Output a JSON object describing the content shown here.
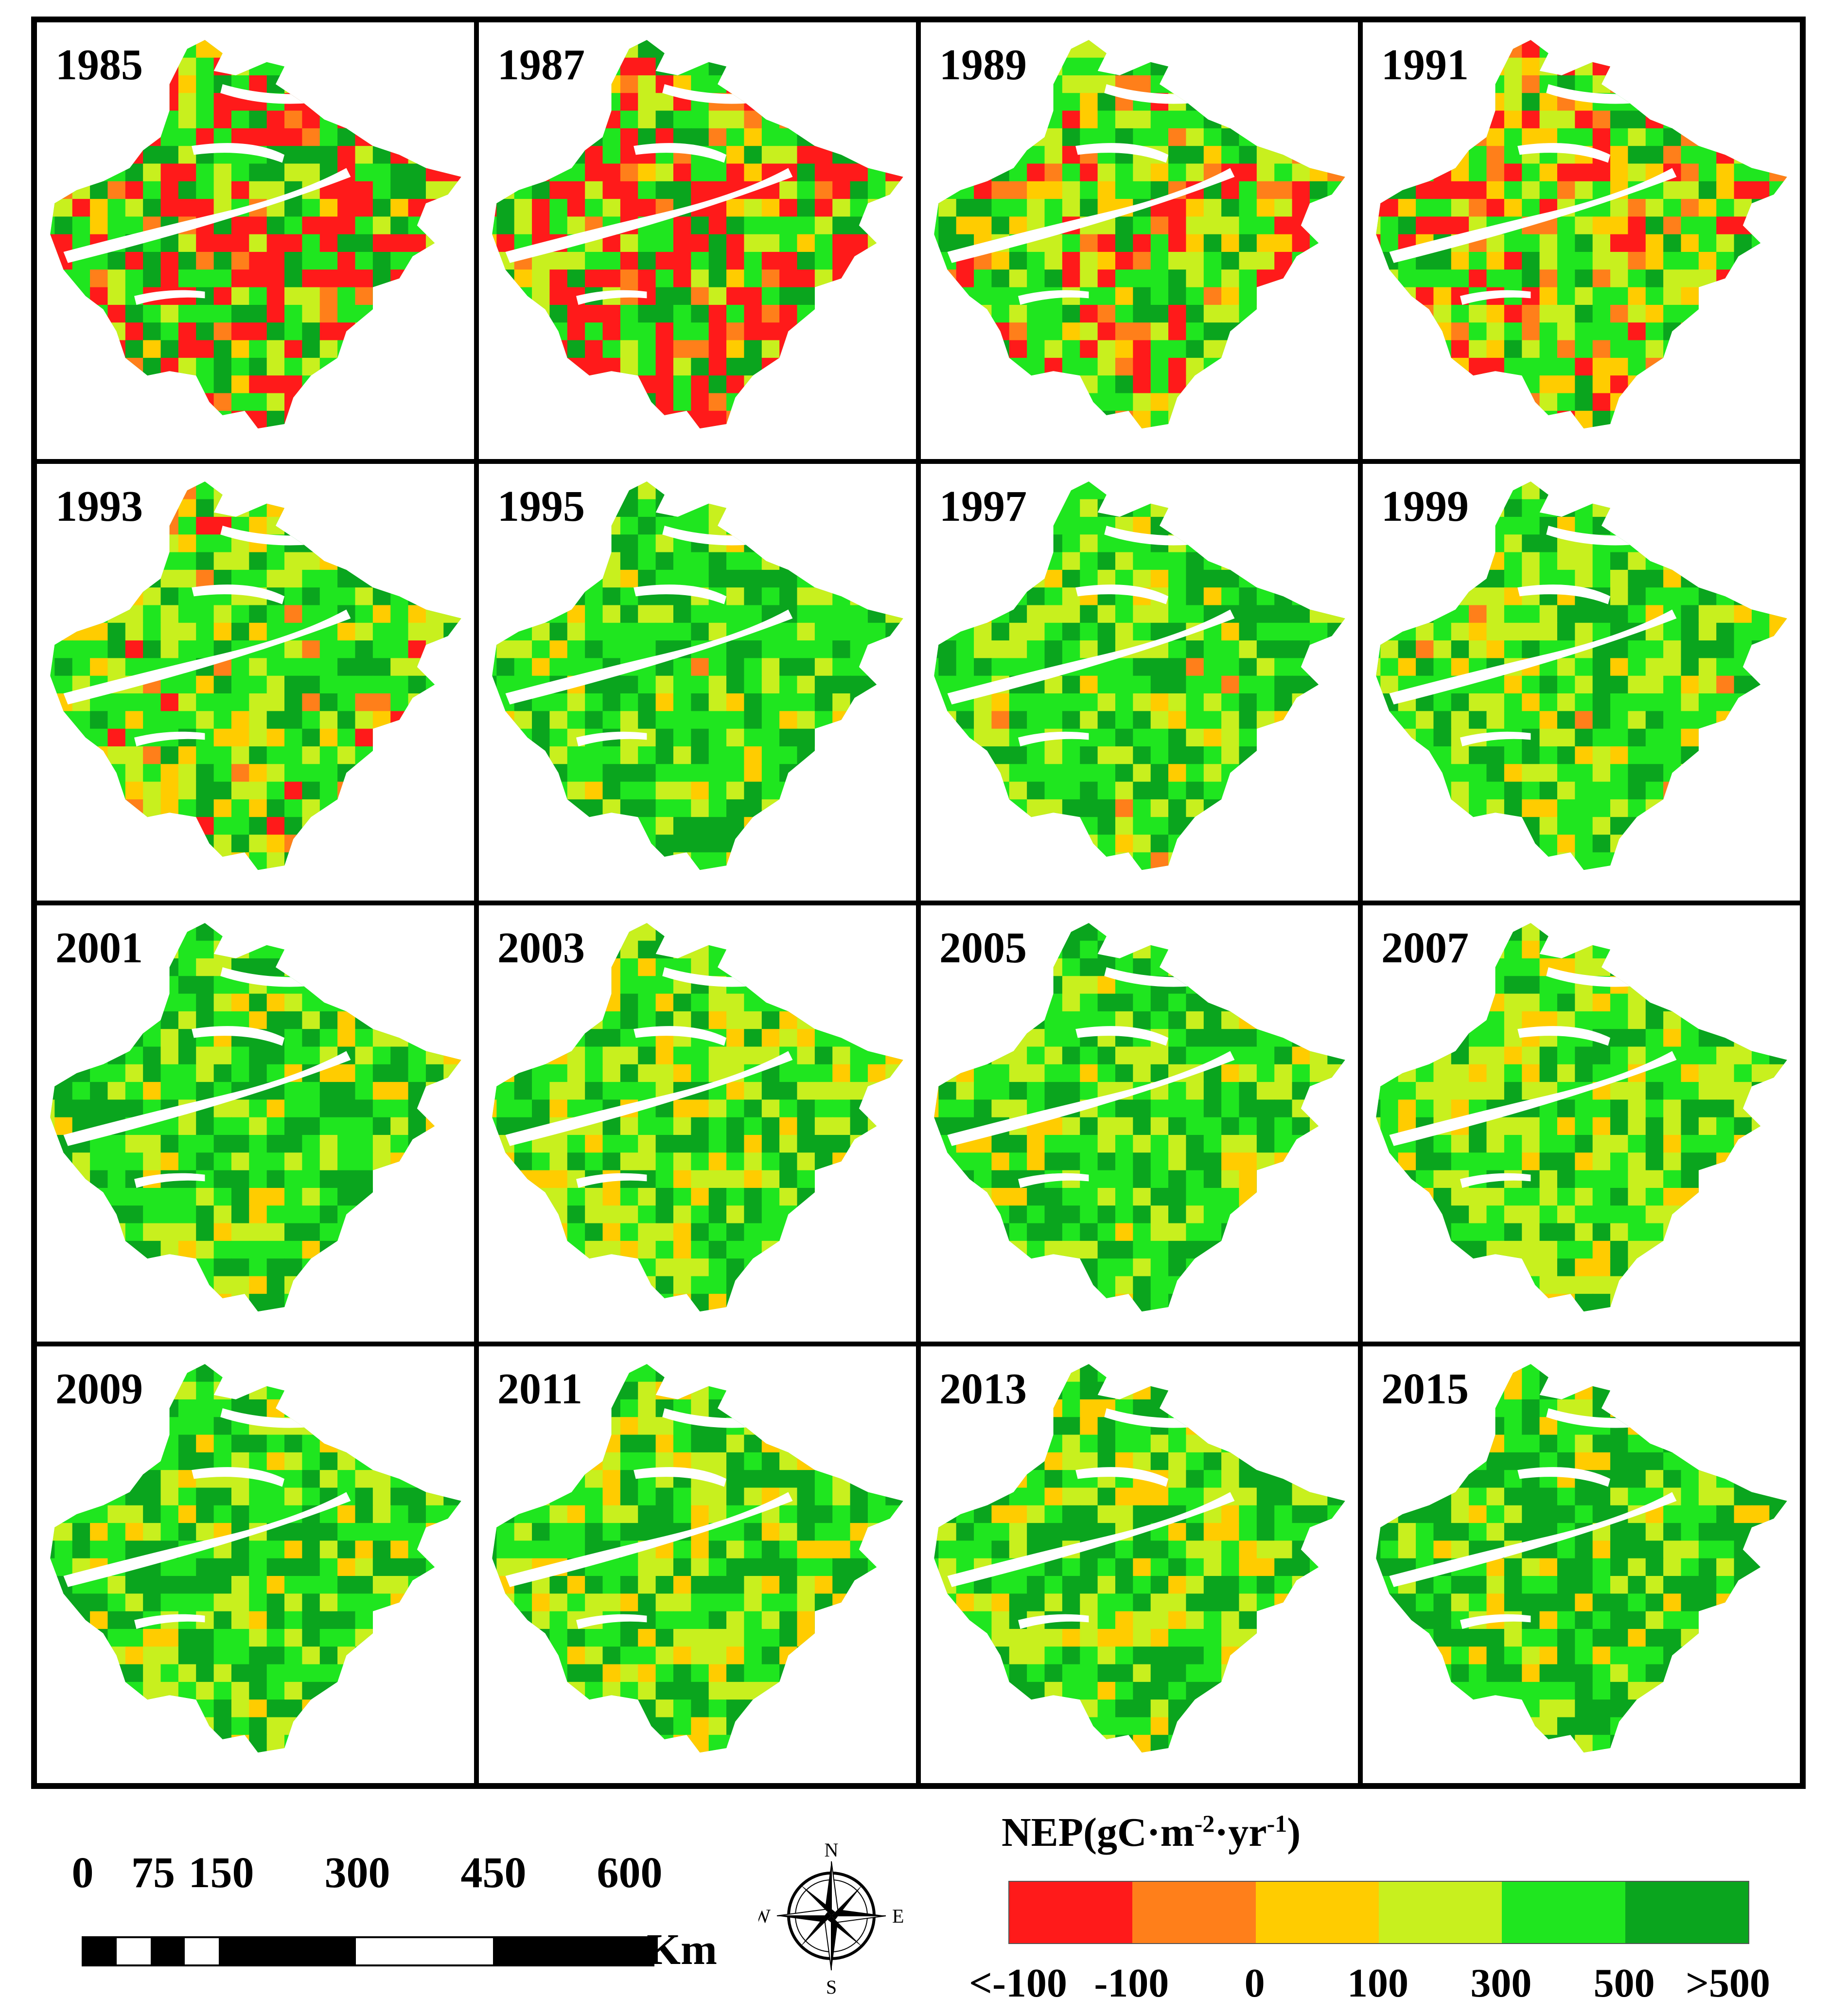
{
  "panels": [
    {
      "year": "1985"
    },
    {
      "year": "1987"
    },
    {
      "year": "1989"
    },
    {
      "year": "1991"
    },
    {
      "year": "1993"
    },
    {
      "year": "1995"
    },
    {
      "year": "1997"
    },
    {
      "year": "1999"
    },
    {
      "year": "2001"
    },
    {
      "year": "2003"
    },
    {
      "year": "2005"
    },
    {
      "year": "2007"
    },
    {
      "year": "2009"
    },
    {
      "year": "2011"
    },
    {
      "year": "2013"
    },
    {
      "year": "2015"
    }
  ],
  "legend": {
    "title_main": "NEP(gC·m",
    "title_exp1": "-2",
    "title_mid": "·yr",
    "title_exp2": "-1",
    "title_end": ")",
    "classes": [
      {
        "color": "#ff1a1a"
      },
      {
        "color": "#ff7f1a"
      },
      {
        "color": "#ffcc00"
      },
      {
        "color": "#c8f01e"
      },
      {
        "color": "#1fe61f"
      },
      {
        "color": "#0aa51e"
      }
    ],
    "ticks": [
      "<-100",
      "-100",
      "0",
      "100",
      "300",
      "500",
      ">500"
    ]
  },
  "scalebar": {
    "labels": [
      "0",
      "75",
      "150",
      "300",
      "450",
      "600"
    ],
    "unit": "Km"
  },
  "compass": {
    "n": "N",
    "e": "E",
    "s": "S",
    "w": "W"
  },
  "palette": {
    "negative": "#ff1a1a",
    "low_negative": "#ff7f1a",
    "zero": "#ffcc00",
    "low": "#c8f01e",
    "mid": "#1fe61f",
    "high": "#0aa51e",
    "no_data": "#ffffff"
  }
}
